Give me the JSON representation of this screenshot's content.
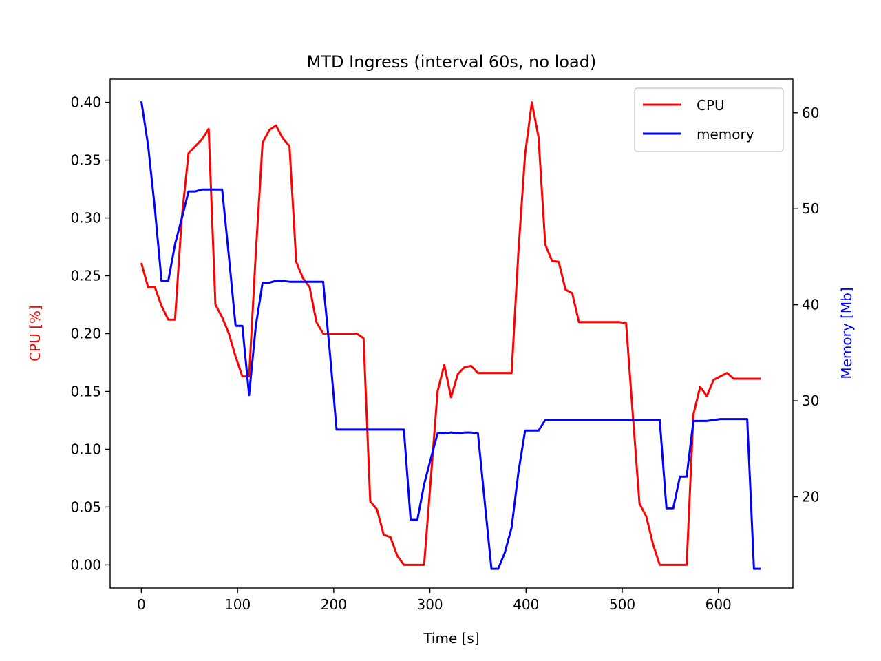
{
  "chart_data": {
    "type": "line",
    "title": "MTD Ingress (interval 60s, no load)",
    "xlabel": "Time [s]",
    "ylabel_left": "CPU [%]",
    "ylabel_right": "Memory [Mb]",
    "xlim": [
      -32.5,
      677.5
    ],
    "ylim_left": [
      -0.02,
      0.42
    ],
    "ylim_right": [
      10.5,
      63.5
    ],
    "xticks": [
      0,
      100,
      200,
      300,
      400,
      500,
      600
    ],
    "xtick_labels": [
      "0",
      "100",
      "200",
      "300",
      "400",
      "500",
      "600"
    ],
    "yticks_left": [
      0,
      0.05,
      0.1,
      0.15,
      0.2,
      0.25,
      0.3,
      0.35,
      0.4
    ],
    "ytick_labels_left": [
      "0.00",
      "0.05",
      "0.10",
      "0.15",
      "0.20",
      "0.25",
      "0.30",
      "0.35",
      "0.40"
    ],
    "yticks_right": [
      20,
      30,
      40,
      50,
      60
    ],
    "ytick_labels_right": [
      "20",
      "30",
      "40",
      "50",
      "60"
    ],
    "grid": false,
    "legend_position": "top-right",
    "series": [
      {
        "name": "CPU",
        "axis": "left",
        "color": "#ff0000",
        "x": [
          0,
          7,
          14,
          21,
          28,
          35,
          42,
          49,
          56,
          63,
          70,
          77,
          84,
          91,
          98,
          105,
          112,
          119,
          126,
          133,
          140,
          147,
          154,
          161,
          168,
          175,
          182,
          189,
          196,
          203,
          210,
          217,
          224,
          231,
          238,
          245,
          252,
          259,
          266,
          273,
          280,
          287,
          294,
          301,
          308,
          315,
          322,
          329,
          336,
          343,
          350,
          357,
          364,
          371,
          378,
          385,
          392,
          399,
          406,
          413,
          420,
          427,
          434,
          441,
          448,
          455,
          462,
          469,
          476,
          483,
          490,
          497,
          504,
          511,
          518,
          525,
          532,
          539,
          546,
          553,
          560,
          567,
          574,
          581,
          588,
          595,
          602,
          609,
          616,
          623,
          630,
          637,
          644
        ],
        "values": [
          0.261,
          0.24,
          0.24,
          0.224,
          0.212,
          0.212,
          0.3,
          0.356,
          0.362,
          0.368,
          0.377,
          0.225,
          0.214,
          0.2,
          0.18,
          0.163,
          0.163,
          0.27,
          0.365,
          0.376,
          0.38,
          0.369,
          0.362,
          0.262,
          0.248,
          0.24,
          0.21,
          0.2,
          0.2,
          0.2,
          0.2,
          0.2,
          0.2,
          0.196,
          0.055,
          0.048,
          0.026,
          0.024,
          0.008,
          0.0,
          0.0,
          0.0,
          0.0,
          0.075,
          0.15,
          0.173,
          0.145,
          0.165,
          0.171,
          0.172,
          0.166,
          0.166,
          0.166,
          0.166,
          0.166,
          0.166,
          0.27,
          0.355,
          0.4,
          0.37,
          0.277,
          0.263,
          0.262,
          0.238,
          0.235,
          0.21,
          0.21,
          0.21,
          0.21,
          0.21,
          0.21,
          0.21,
          0.209,
          0.13,
          0.053,
          0.042,
          0.018,
          0.0,
          0.0,
          0.0,
          0.0,
          0.0,
          0.13,
          0.154,
          0.146,
          0.16,
          0.163,
          0.166,
          0.161,
          0.161,
          0.161,
          0.161,
          0.161
        ]
      },
      {
        "name": "memory",
        "axis": "right",
        "color": "#0000ff",
        "x": [
          0,
          7,
          14,
          21,
          28,
          35,
          42,
          49,
          56,
          63,
          70,
          77,
          84,
          91,
          98,
          105,
          112,
          119,
          126,
          133,
          140,
          147,
          154,
          161,
          168,
          175,
          182,
          189,
          196,
          203,
          210,
          217,
          224,
          231,
          238,
          245,
          252,
          259,
          266,
          273,
          280,
          287,
          294,
          301,
          308,
          315,
          322,
          329,
          336,
          343,
          350,
          357,
          364,
          371,
          378,
          385,
          392,
          399,
          406,
          413,
          420,
          427,
          434,
          441,
          448,
          455,
          462,
          469,
          476,
          483,
          490,
          497,
          504,
          511,
          518,
          525,
          532,
          539,
          546,
          553,
          560,
          567,
          574,
          581,
          588,
          595,
          602,
          609,
          616,
          623,
          630,
          637,
          644
        ],
        "values": [
          61.2,
          56.6,
          50.0,
          42.5,
          42.5,
          46.3,
          49.0,
          51.8,
          51.8,
          52.0,
          52.0,
          52.0,
          52.0,
          45.0,
          37.8,
          37.8,
          30.6,
          37.8,
          42.3,
          42.3,
          42.5,
          42.5,
          42.4,
          42.4,
          42.4,
          42.4,
          42.4,
          42.4,
          35.0,
          27.0,
          27.0,
          27.0,
          27.0,
          27.0,
          27.0,
          27.0,
          27.0,
          27.0,
          27.0,
          27.0,
          17.6,
          17.6,
          21.3,
          24.0,
          26.6,
          26.6,
          26.7,
          26.6,
          26.7,
          26.7,
          26.6,
          19.5,
          12.5,
          12.5,
          14.2,
          16.8,
          22.5,
          26.9,
          26.9,
          26.9,
          28.0,
          28.0,
          28.0,
          28.0,
          28.0,
          28.0,
          28.0,
          28.0,
          28.0,
          28.0,
          28.0,
          28.0,
          28.0,
          28.0,
          28.0,
          28.0,
          28.0,
          28.0,
          18.8,
          18.8,
          22.1,
          22.1,
          27.9,
          27.9,
          27.9,
          28.0,
          28.1,
          28.1,
          28.1,
          28.1,
          28.1,
          12.5,
          12.5
        ]
      }
    ]
  }
}
